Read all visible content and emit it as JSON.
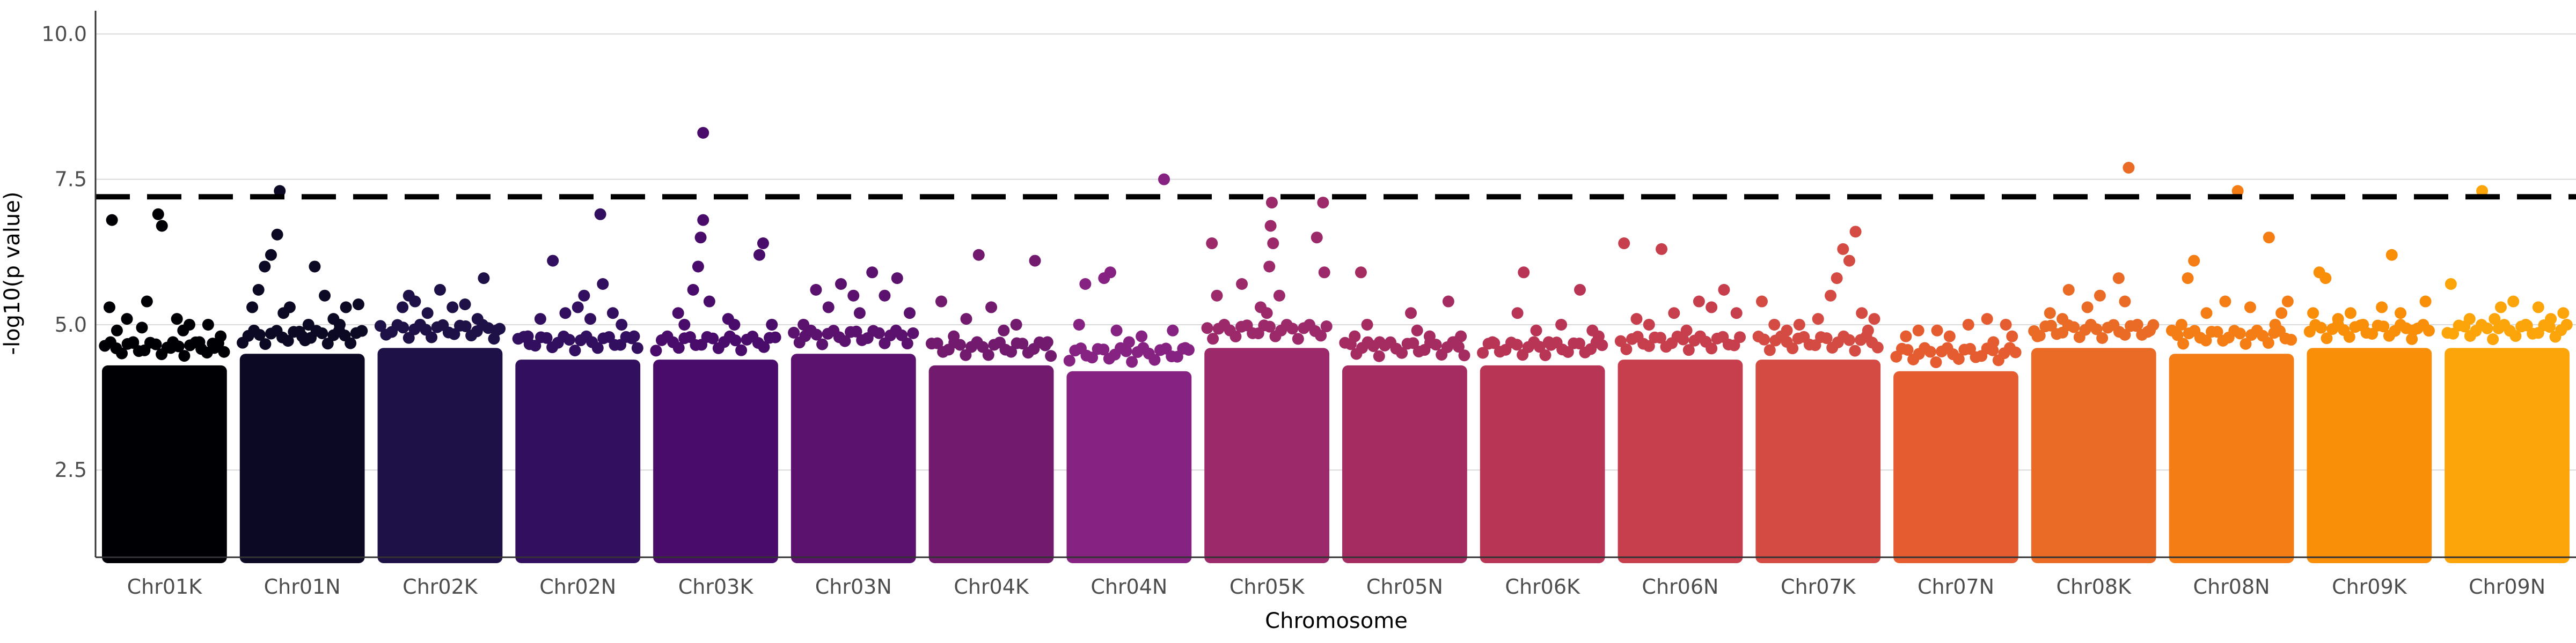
{
  "chart_data": {
    "type": "scatter",
    "subtype": "manhattan",
    "title": "",
    "xlabel": "Chromosome",
    "ylabel": "-log10(p value)",
    "ylim": [
      1.0,
      10.4
    ],
    "yticks": [
      2.5,
      5.0,
      7.5,
      10.0
    ],
    "ytick_labels": [
      "2.5",
      "5.0",
      "7.5",
      "10.0"
    ],
    "grid": "horizontal",
    "legend": "none",
    "threshold": {
      "y": 7.2,
      "style": "dashed",
      "color": "#000000"
    },
    "categories": [
      "Chr01K",
      "Chr01N",
      "Chr02K",
      "Chr02N",
      "Chr03K",
      "Chr03N",
      "Chr04K",
      "Chr04N",
      "Chr05K",
      "Chr05N",
      "Chr06K",
      "Chr06N",
      "Chr07K",
      "Chr07N",
      "Chr08K",
      "Chr08N",
      "Chr09K",
      "Chr09N"
    ],
    "colors": [
      "#000004",
      "#0b0924",
      "#1d1147",
      "#32105f",
      "#4a0c6b",
      "#5b116e",
      "#721a6e",
      "#862281",
      "#9c2a6a",
      "#a52c60",
      "#b93556",
      "#c73e4c",
      "#d34b42",
      "#e55c30",
      "#ea6b25",
      "#f57d15",
      "#f98e09",
      "#fca50a"
    ],
    "series": [
      {
        "name": "Chr01K",
        "bulk_max": 4.3,
        "peaks": [
          [
            0.06,
            5.3
          ],
          [
            0.08,
            6.8
          ],
          [
            0.12,
            4.9
          ],
          [
            0.2,
            5.1
          ],
          [
            0.25,
            4.7
          ],
          [
            0.32,
            4.95
          ],
          [
            0.36,
            5.4
          ],
          [
            0.45,
            6.9
          ],
          [
            0.48,
            6.7
          ],
          [
            0.55,
            4.6
          ],
          [
            0.6,
            5.1
          ],
          [
            0.65,
            4.9
          ],
          [
            0.7,
            5.0
          ],
          [
            0.78,
            4.7
          ],
          [
            0.85,
            5.0
          ],
          [
            0.9,
            4.6
          ],
          [
            0.95,
            4.8
          ]
        ]
      },
      {
        "name": "Chr01N",
        "bulk_max": 4.5,
        "peaks": [
          [
            0.1,
            5.3
          ],
          [
            0.15,
            5.6
          ],
          [
            0.2,
            6.0
          ],
          [
            0.25,
            6.2
          ],
          [
            0.3,
            6.55
          ],
          [
            0.32,
            7.3
          ],
          [
            0.35,
            5.2
          ],
          [
            0.4,
            5.3
          ],
          [
            0.5,
            4.8
          ],
          [
            0.55,
            5.0
          ],
          [
            0.6,
            6.0
          ],
          [
            0.68,
            5.5
          ],
          [
            0.75,
            5.1
          ],
          [
            0.8,
            5.0
          ],
          [
            0.85,
            5.3
          ],
          [
            0.95,
            5.35
          ]
        ]
      },
      {
        "name": "Chr02K",
        "bulk_max": 4.6,
        "peaks": [
          [
            0.2,
            5.3
          ],
          [
            0.25,
            5.5
          ],
          [
            0.3,
            5.4
          ],
          [
            0.4,
            5.2
          ],
          [
            0.5,
            5.6
          ],
          [
            0.6,
            5.3
          ],
          [
            0.7,
            5.35
          ],
          [
            0.8,
            5.1
          ],
          [
            0.85,
            5.8
          ],
          [
            0.95,
            4.9
          ]
        ]
      },
      {
        "name": "Chr02N",
        "bulk_max": 4.4,
        "peaks": [
          [
            0.1,
            4.8
          ],
          [
            0.2,
            5.1
          ],
          [
            0.3,
            6.1
          ],
          [
            0.4,
            5.2
          ],
          [
            0.5,
            5.3
          ],
          [
            0.55,
            5.5
          ],
          [
            0.6,
            5.1
          ],
          [
            0.68,
            6.9
          ],
          [
            0.7,
            5.7
          ],
          [
            0.78,
            5.2
          ],
          [
            0.85,
            5.0
          ],
          [
            0.95,
            4.8
          ]
        ]
      },
      {
        "name": "Chr03K",
        "bulk_max": 4.4,
        "peaks": [
          [
            0.2,
            5.2
          ],
          [
            0.25,
            5.0
          ],
          [
            0.32,
            5.6
          ],
          [
            0.36,
            6.0
          ],
          [
            0.38,
            6.5
          ],
          [
            0.4,
            6.8
          ],
          [
            0.4,
            8.3
          ],
          [
            0.45,
            5.4
          ],
          [
            0.6,
            5.1
          ],
          [
            0.65,
            5.0
          ],
          [
            0.85,
            6.2
          ],
          [
            0.88,
            6.4
          ],
          [
            0.95,
            5.0
          ]
        ]
      },
      {
        "name": "Chr03N",
        "bulk_max": 4.5,
        "peaks": [
          [
            0.1,
            5.0
          ],
          [
            0.2,
            5.6
          ],
          [
            0.3,
            5.3
          ],
          [
            0.4,
            5.7
          ],
          [
            0.5,
            5.5
          ],
          [
            0.55,
            5.2
          ],
          [
            0.65,
            5.9
          ],
          [
            0.75,
            5.5
          ],
          [
            0.85,
            5.8
          ],
          [
            0.95,
            5.2
          ]
        ]
      },
      {
        "name": "Chr04K",
        "bulk_max": 4.3,
        "peaks": [
          [
            0.1,
            5.4
          ],
          [
            0.2,
            4.8
          ],
          [
            0.3,
            5.1
          ],
          [
            0.4,
            6.2
          ],
          [
            0.5,
            5.3
          ],
          [
            0.6,
            4.9
          ],
          [
            0.7,
            5.0
          ],
          [
            0.85,
            6.1
          ],
          [
            0.95,
            4.7
          ]
        ]
      },
      {
        "name": "Chr04N",
        "bulk_max": 4.2,
        "peaks": [
          [
            0.1,
            5.0
          ],
          [
            0.15,
            5.7
          ],
          [
            0.3,
            5.8
          ],
          [
            0.35,
            5.9
          ],
          [
            0.4,
            4.9
          ],
          [
            0.5,
            4.7
          ],
          [
            0.6,
            4.8
          ],
          [
            0.78,
            7.5
          ],
          [
            0.85,
            4.9
          ],
          [
            0.95,
            4.6
          ]
        ]
      },
      {
        "name": "Chr05K",
        "bulk_max": 4.6,
        "peaks": [
          [
            0.06,
            6.4
          ],
          [
            0.1,
            5.5
          ],
          [
            0.3,
            5.7
          ],
          [
            0.45,
            5.3
          ],
          [
            0.5,
            5.2
          ],
          [
            0.52,
            6.0
          ],
          [
            0.53,
            6.7
          ],
          [
            0.54,
            7.1
          ],
          [
            0.55,
            6.4
          ],
          [
            0.6,
            5.5
          ],
          [
            0.9,
            6.5
          ],
          [
            0.95,
            7.1
          ],
          [
            0.96,
            5.9
          ]
        ]
      },
      {
        "name": "Chr05N",
        "bulk_max": 4.3,
        "peaks": [
          [
            0.1,
            4.8
          ],
          [
            0.15,
            5.9
          ],
          [
            0.2,
            5.0
          ],
          [
            0.3,
            4.7
          ],
          [
            0.55,
            5.2
          ],
          [
            0.6,
            4.9
          ],
          [
            0.7,
            4.8
          ],
          [
            0.85,
            5.4
          ],
          [
            0.9,
            4.7
          ],
          [
            0.95,
            4.8
          ]
        ]
      },
      {
        "name": "Chr06K",
        "bulk_max": 4.3,
        "peaks": [
          [
            0.1,
            4.7
          ],
          [
            0.3,
            5.2
          ],
          [
            0.35,
            5.9
          ],
          [
            0.45,
            4.9
          ],
          [
            0.55,
            4.7
          ],
          [
            0.65,
            5.0
          ],
          [
            0.8,
            5.6
          ],
          [
            0.9,
            4.9
          ],
          [
            0.95,
            4.8
          ]
        ]
      },
      {
        "name": "Chr06N",
        "bulk_max": 4.4,
        "peaks": [
          [
            0.05,
            6.4
          ],
          [
            0.15,
            5.1
          ],
          [
            0.25,
            5.0
          ],
          [
            0.35,
            6.3
          ],
          [
            0.45,
            5.2
          ],
          [
            0.55,
            4.9
          ],
          [
            0.65,
            5.4
          ],
          [
            0.75,
            5.3
          ],
          [
            0.85,
            5.6
          ],
          [
            0.95,
            5.2
          ]
        ]
      },
      {
        "name": "Chr07K",
        "bulk_max": 4.4,
        "peaks": [
          [
            0.05,
            5.4
          ],
          [
            0.15,
            5.0
          ],
          [
            0.25,
            4.9
          ],
          [
            0.35,
            5.0
          ],
          [
            0.5,
            5.1
          ],
          [
            0.6,
            5.5
          ],
          [
            0.65,
            5.8
          ],
          [
            0.7,
            6.3
          ],
          [
            0.75,
            6.1
          ],
          [
            0.8,
            6.6
          ],
          [
            0.85,
            5.2
          ],
          [
            0.9,
            4.9
          ],
          [
            0.95,
            5.1
          ]
        ]
      },
      {
        "name": "Chr07N",
        "bulk_max": 4.2,
        "peaks": [
          [
            0.1,
            4.8
          ],
          [
            0.2,
            4.9
          ],
          [
            0.35,
            4.9
          ],
          [
            0.45,
            4.8
          ],
          [
            0.6,
            5.0
          ],
          [
            0.75,
            5.1
          ],
          [
            0.8,
            4.7
          ],
          [
            0.9,
            5.0
          ],
          [
            0.95,
            4.8
          ]
        ]
      },
      {
        "name": "Chr08K",
        "bulk_max": 4.6,
        "peaks": [
          [
            0.05,
            4.8
          ],
          [
            0.15,
            5.2
          ],
          [
            0.25,
            5.1
          ],
          [
            0.3,
            5.6
          ],
          [
            0.45,
            5.3
          ],
          [
            0.55,
            5.5
          ],
          [
            0.7,
            5.8
          ],
          [
            0.75,
            5.4
          ],
          [
            0.78,
            7.7
          ],
          [
            0.85,
            5.0
          ],
          [
            0.95,
            4.9
          ]
        ]
      },
      {
        "name": "Chr08N",
        "bulk_max": 4.5,
        "peaks": [
          [
            0.1,
            5.0
          ],
          [
            0.15,
            5.8
          ],
          [
            0.2,
            6.1
          ],
          [
            0.3,
            5.2
          ],
          [
            0.45,
            5.4
          ],
          [
            0.55,
            7.3
          ],
          [
            0.65,
            5.3
          ],
          [
            0.8,
            6.5
          ],
          [
            0.85,
            5.0
          ],
          [
            0.9,
            5.2
          ],
          [
            0.95,
            5.4
          ]
        ]
      },
      {
        "name": "Chr09K",
        "bulk_max": 4.6,
        "peaks": [
          [
            0.05,
            5.2
          ],
          [
            0.1,
            5.9
          ],
          [
            0.15,
            5.8
          ],
          [
            0.25,
            5.1
          ],
          [
            0.35,
            5.2
          ],
          [
            0.45,
            5.0
          ],
          [
            0.6,
            5.3
          ],
          [
            0.68,
            6.2
          ],
          [
            0.75,
            5.2
          ],
          [
            0.85,
            4.9
          ],
          [
            0.95,
            5.4
          ]
        ]
      },
      {
        "name": "Chr09N",
        "bulk_max": 4.6,
        "peaks": [
          [
            0.05,
            5.7
          ],
          [
            0.2,
            5.1
          ],
          [
            0.3,
            7.3
          ],
          [
            0.4,
            5.1
          ],
          [
            0.45,
            5.3
          ],
          [
            0.55,
            5.4
          ],
          [
            0.65,
            5.0
          ],
          [
            0.75,
            5.3
          ],
          [
            0.85,
            5.1
          ],
          [
            0.95,
            5.2
          ]
        ]
      }
    ]
  }
}
